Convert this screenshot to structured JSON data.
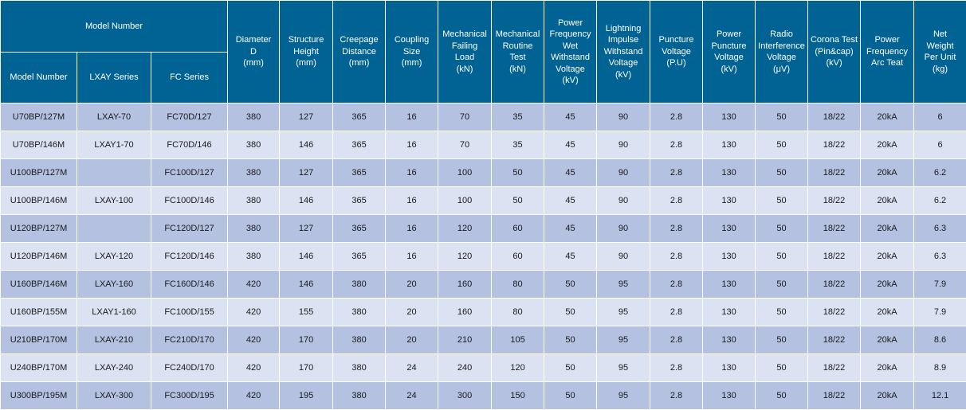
{
  "table": {
    "group_header": "Model Number",
    "sub_headers": [
      "Model Number",
      "LXAY Series",
      "FC Series"
    ],
    "columns": [
      [
        "Diameter",
        "D",
        "(mm)"
      ],
      [
        "Structure",
        "Height",
        "(mm)"
      ],
      [
        "Creepage",
        "Distance",
        "(mm)"
      ],
      [
        "Coupling",
        "Size",
        "(mm)"
      ],
      [
        "Mechanical",
        "Failing",
        "Load",
        "(kN)"
      ],
      [
        "Mechanical",
        "Routine",
        "Test",
        "(kN)"
      ],
      [
        "Power",
        "Frequency",
        "Wet",
        "Withstand",
        "Voltage",
        "(kV)"
      ],
      [
        "Lightning",
        "Impulse",
        "Withstand",
        "Voltage",
        "(kV)"
      ],
      [
        "Puncture",
        "Voltage",
        "(P.U)"
      ],
      [
        "Power",
        "Puncture",
        "Voltage",
        "(kV)"
      ],
      [
        "Radio",
        "Interference",
        "Voltage",
        "(μV)"
      ],
      [
        "Corona Test",
        "(Pin&cap)",
        "(kV)"
      ],
      [
        "Power",
        "Frequency",
        "Arc Teat"
      ],
      [
        "Net",
        "Weight",
        "Per Unit",
        "(kg)"
      ]
    ],
    "rows": [
      [
        "U70BP/127M",
        "LXAY-70",
        "FC70D/127",
        "380",
        "127",
        "365",
        "16",
        "70",
        "35",
        "45",
        "90",
        "2.8",
        "130",
        "50",
        "18/22",
        "20kA",
        "6"
      ],
      [
        "U70BP/146M",
        "LXAY1-70",
        "FC70D/146",
        "380",
        "146",
        "365",
        "16",
        "70",
        "35",
        "45",
        "90",
        "2.8",
        "130",
        "50",
        "18/22",
        "20kA",
        "6"
      ],
      [
        "U100BP/127M",
        "",
        "FC100D/127",
        "380",
        "127",
        "365",
        "16",
        "100",
        "50",
        "45",
        "90",
        "2.8",
        "130",
        "50",
        "18/22",
        "20kA",
        "6.2"
      ],
      [
        "U100BP/146M",
        "LXAY-100",
        "FC100D/146",
        "380",
        "146",
        "365",
        "16",
        "100",
        "50",
        "45",
        "90",
        "2.8",
        "130",
        "50",
        "18/22",
        "20kA",
        "6.2"
      ],
      [
        "U120BP/127M",
        "",
        "FC120D/127",
        "380",
        "127",
        "365",
        "16",
        "120",
        "60",
        "45",
        "90",
        "2.8",
        "130",
        "50",
        "18/22",
        "20kA",
        "6.3"
      ],
      [
        "U120BP/146M",
        "LXAY-120",
        "FC120D/146",
        "380",
        "146",
        "365",
        "16",
        "120",
        "60",
        "45",
        "90",
        "2.8",
        "130",
        "50",
        "18/22",
        "20kA",
        "6.3"
      ],
      [
        "U160BP/146M",
        "LXAY-160",
        "FC160D/146",
        "420",
        "146",
        "380",
        "20",
        "160",
        "80",
        "50",
        "95",
        "2.8",
        "130",
        "50",
        "18/22",
        "20kA",
        "7.9"
      ],
      [
        "U160BP/155M",
        "LXAY1-160",
        "FC100D/155",
        "420",
        "155",
        "380",
        "20",
        "160",
        "80",
        "50",
        "95",
        "2.8",
        "130",
        "50",
        "18/22",
        "20kA",
        "7.9"
      ],
      [
        "U210BP/170M",
        "LXAY-210",
        "FC210D/170",
        "420",
        "170",
        "380",
        "20",
        "210",
        "105",
        "50",
        "95",
        "2.8",
        "130",
        "50",
        "18/22",
        "20kA",
        "8.6"
      ],
      [
        "U240BP/170M",
        "LXAY-240",
        "FC240D/170",
        "420",
        "170",
        "380",
        "24",
        "240",
        "120",
        "50",
        "95",
        "2.8",
        "130",
        "50",
        "18/22",
        "20kA",
        "8.9"
      ],
      [
        "U300BP/195M",
        "LXAY-300",
        "FC300D/195",
        "420",
        "195",
        "380",
        "24",
        "300",
        "150",
        "50",
        "95",
        "2.8",
        "130",
        "50",
        "18/22",
        "20kA",
        "12.1"
      ]
    ],
    "colors": {
      "header_bg": "#006393",
      "header_text": "#ffffff",
      "row_dark": "#b4c1e0",
      "row_light": "#dbe2f2"
    }
  }
}
